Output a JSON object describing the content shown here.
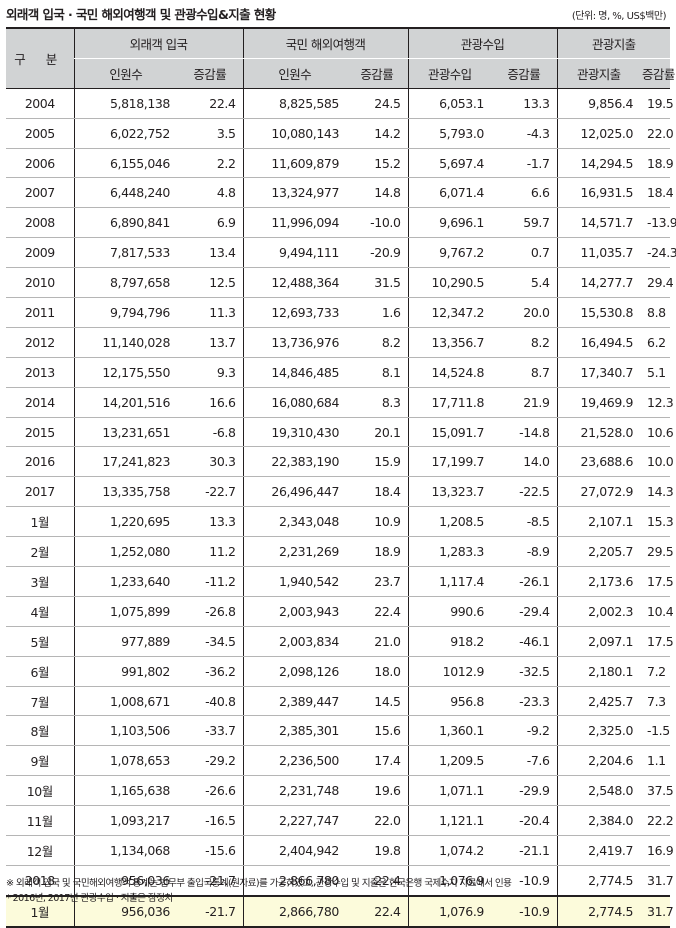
{
  "title": "외래객 입국 · 국민 해외여행객 및 관광수입&지출 현황",
  "unit": "(단위: 명, %, US$백만)",
  "header": {
    "row_label": "구 분",
    "groups": [
      "외래객 입국",
      "국민 해외여행객",
      "관광수입",
      "관광지출"
    ],
    "subheaders": [
      "인원수",
      "증감률",
      "인원수",
      "증감률",
      "관광수입",
      "증감률",
      "관광지출",
      "증감률"
    ]
  },
  "rows": [
    {
      "label": "2004",
      "cells": [
        "5,818,138",
        "22.4",
        "8,825,585",
        "24.5",
        "6,053.1",
        "13.3",
        "9,856.4",
        "19.5"
      ]
    },
    {
      "label": "2005",
      "cells": [
        "6,022,752",
        "3.5",
        "10,080,143",
        "14.2",
        "5,793.0",
        "-4.3",
        "12,025.0",
        "22.0"
      ]
    },
    {
      "label": "2006",
      "cells": [
        "6,155,046",
        "2.2",
        "11,609,879",
        "15.2",
        "5,697.4",
        "-1.7",
        "14,294.5",
        "18.9"
      ]
    },
    {
      "label": "2007",
      "cells": [
        "6,448,240",
        "4.8",
        "13,324,977",
        "14.8",
        "6,071.4",
        "6.6",
        "16,931.5",
        "18.4"
      ]
    },
    {
      "label": "2008",
      "cells": [
        "6,890,841",
        "6.9",
        "11,996,094",
        "-10.0",
        "9,696.1",
        "59.7",
        "14,571.7",
        "-13.9"
      ]
    },
    {
      "label": "2009",
      "cells": [
        "7,817,533",
        "13.4",
        "9,494,111",
        "-20.9",
        "9,767.2",
        "0.7",
        "11,035.7",
        "-24.3"
      ]
    },
    {
      "label": "2010",
      "cells": [
        "8,797,658",
        "12.5",
        "12,488,364",
        "31.5",
        "10,290.5",
        "5.4",
        "14,277.7",
        "29.4"
      ]
    },
    {
      "label": "2011",
      "cells": [
        "9,794,796",
        "11.3",
        "12,693,733",
        "1.6",
        "12,347.2",
        "20.0",
        "15,530.8",
        "8.8"
      ]
    },
    {
      "label": "2012",
      "cells": [
        "11,140,028",
        "13.7",
        "13,736,976",
        "8.2",
        "13,356.7",
        "8.2",
        "16,494.5",
        "6.2"
      ]
    },
    {
      "label": "2013",
      "cells": [
        "12,175,550",
        "9.3",
        "14,846,485",
        "8.1",
        "14,524.8",
        "8.7",
        "17,340.7",
        "5.1"
      ]
    },
    {
      "label": "2014",
      "cells": [
        "14,201,516",
        "16.6",
        "16,080,684",
        "8.3",
        "17,711.8",
        "21.9",
        "19,469.9",
        "12.3"
      ]
    },
    {
      "label": "2015",
      "cells": [
        "13,231,651",
        "-6.8",
        "19,310,430",
        "20.1",
        "15,091.7",
        "-14.8",
        "21,528.0",
        "10.6"
      ]
    },
    {
      "label": "2016",
      "cells": [
        "17,241,823",
        "30.3",
        "22,383,190",
        "15.9",
        "17,199.7",
        "14.0",
        "23,688.6",
        "10.0"
      ]
    },
    {
      "label": "2017",
      "cells": [
        "13,335,758",
        "-22.7",
        "26,496,447",
        "18.4",
        "13,323.7",
        "-22.5",
        "27,072.9",
        "14.3"
      ]
    },
    {
      "label": "1월",
      "cells": [
        "1,220,695",
        "13.3",
        "2,343,048",
        "10.9",
        "1,208.5",
        "-8.5",
        "2,107.1",
        "15.3"
      ]
    },
    {
      "label": "2월",
      "cells": [
        "1,252,080",
        "11.2",
        "2,231,269",
        "18.9",
        "1,283.3",
        "-8.9",
        "2,205.7",
        "29.5"
      ]
    },
    {
      "label": "3월",
      "cells": [
        "1,233,640",
        "-11.2",
        "1,940,542",
        "23.7",
        "1,117.4",
        "-26.1",
        "2,173.6",
        "17.5"
      ]
    },
    {
      "label": "4월",
      "cells": [
        "1,075,899",
        "-26.8",
        "2,003,943",
        "22.4",
        "990.6",
        "-29.4",
        "2,002.3",
        "10.4"
      ]
    },
    {
      "label": "5월",
      "cells": [
        "977,889",
        "-34.5",
        "2,003,834",
        "21.0",
        "918.2",
        "-46.1",
        "2,097.1",
        "17.5"
      ]
    },
    {
      "label": "6월",
      "cells": [
        "991,802",
        "-36.2",
        "2,098,126",
        "18.0",
        "1012.9",
        "-32.5",
        "2,180.1",
        "7.2"
      ]
    },
    {
      "label": "7월",
      "cells": [
        "1,008,671",
        "-40.8",
        "2,389,447",
        "14.5",
        "956.8",
        "-23.3",
        "2,425.7",
        "7.3"
      ]
    },
    {
      "label": "8월",
      "cells": [
        "1,103,506",
        "-33.7",
        "2,385,301",
        "15.6",
        "1,360.1",
        "-9.2",
        "2,325.0",
        "-1.5"
      ]
    },
    {
      "label": "9월",
      "cells": [
        "1,078,653",
        "-29.2",
        "2,236,500",
        "17.4",
        "1,209.5",
        "-7.6",
        "2,204.6",
        "1.1"
      ]
    },
    {
      "label": "10월",
      "cells": [
        "1,165,638",
        "-26.6",
        "2,231,748",
        "19.6",
        "1,071.1",
        "-29.9",
        "2,548.0",
        "37.5"
      ]
    },
    {
      "label": "11월",
      "cells": [
        "1,093,217",
        "-16.5",
        "2,227,747",
        "22.0",
        "1,121.1",
        "-20.4",
        "2,384.0",
        "22.2"
      ]
    },
    {
      "label": "12월",
      "cells": [
        "1,134,068",
        "-15.6",
        "2,404,942",
        "19.8",
        "1,074.2",
        "-21.1",
        "2,419.7",
        "16.9"
      ]
    },
    {
      "label": "2018",
      "cells": [
        "956,036",
        "-21.7",
        "2,866,780",
        "22.4",
        "1,076.9",
        "-10.9",
        "2,774.5",
        "31.7"
      ]
    },
    {
      "label": "1월",
      "cells": [
        "956,036",
        "-21.7",
        "2,866,780",
        "22.4",
        "1,076.9",
        "-10.9",
        "2,774.5",
        "31.7"
      ]
    }
  ],
  "notes": [
    "※ 외래객 입국 및 국민해외여행객 통계는 법무부 출입국통계(원자료)를 가공하였고, 관광수입 및 지출은 한국은행 국제수지 자료에서 인용",
    "* 2016년, 2017년 관광수입 · 지출은 잠정치"
  ]
}
